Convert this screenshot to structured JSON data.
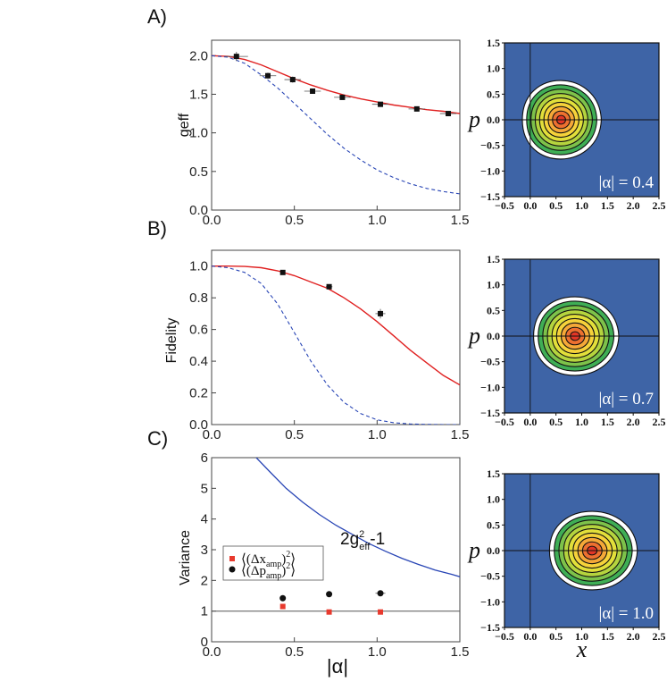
{
  "figure": {
    "panels": [
      "A)",
      "B)",
      "C)"
    ],
    "colors": {
      "theory_red": "#e02020",
      "classical_blue": "#2845b5",
      "wigner_bg": "#3e64a6",
      "marker": "#111111",
      "red_marker": "#e83a2e"
    }
  },
  "chart_data": [
    {
      "id": "A",
      "type": "scatter",
      "panel_label": "A)",
      "xlabel": "",
      "ylabel": "geff",
      "xlim": [
        0.0,
        1.5
      ],
      "ylim": [
        0.0,
        2.2
      ],
      "xticks": [
        "0.0",
        "0.5",
        "1.0",
        "1.5"
      ],
      "yticks": [
        "0.0",
        "0.5",
        "1.0",
        "1.5",
        "2.0"
      ],
      "points": {
        "x": [
          0.15,
          0.34,
          0.49,
          0.61,
          0.79,
          1.02,
          1.24,
          1.43
        ],
        "y": [
          1.99,
          1.74,
          1.69,
          1.54,
          1.46,
          1.37,
          1.31,
          1.25
        ],
        "xerr": [
          0.07,
          0.05,
          0.05,
          0.05,
          0.05,
          0.05,
          0.05,
          0.05
        ],
        "yerr": [
          0.06,
          0.04,
          0.04,
          0.03,
          0.03,
          0.03,
          0.03,
          0.03
        ]
      },
      "series": [
        {
          "name": "theory",
          "style": "solid-red",
          "x": [
            0.0,
            0.1,
            0.2,
            0.3,
            0.4,
            0.5,
            0.6,
            0.7,
            0.8,
            0.9,
            1.0,
            1.1,
            1.2,
            1.3,
            1.4,
            1.5
          ],
          "values": [
            2.0,
            1.99,
            1.95,
            1.88,
            1.79,
            1.7,
            1.62,
            1.55,
            1.49,
            1.44,
            1.4,
            1.36,
            1.33,
            1.3,
            1.28,
            1.25
          ]
        },
        {
          "name": "classical",
          "style": "dashed-blue",
          "x": [
            0.0,
            0.1,
            0.2,
            0.3,
            0.4,
            0.5,
            0.6,
            0.7,
            0.8,
            0.9,
            1.0,
            1.1,
            1.2,
            1.3,
            1.4,
            1.5
          ],
          "values": [
            2.0,
            1.98,
            1.9,
            1.75,
            1.58,
            1.38,
            1.18,
            0.98,
            0.8,
            0.65,
            0.52,
            0.42,
            0.34,
            0.28,
            0.24,
            0.21
          ]
        }
      ]
    },
    {
      "id": "B",
      "type": "scatter",
      "panel_label": "B)",
      "xlabel": "",
      "ylabel": "Fidelity",
      "xlim": [
        0.0,
        1.5
      ],
      "ylim": [
        0.0,
        1.1
      ],
      "xticks": [
        "0.0",
        "0.5",
        "1.0",
        "1.5"
      ],
      "yticks": [
        "0.0",
        "0.2",
        "0.4",
        "0.6",
        "0.8",
        "1.0"
      ],
      "points": {
        "x": [
          0.43,
          0.71,
          1.02
        ],
        "y": [
          0.96,
          0.87,
          0.7
        ],
        "xerr": [
          0.0,
          0.02,
          0.03
        ],
        "yerr": [
          0.01,
          0.01,
          0.03
        ]
      },
      "series": [
        {
          "name": "theory",
          "style": "solid-red",
          "x": [
            0.0,
            0.1,
            0.2,
            0.3,
            0.4,
            0.5,
            0.6,
            0.7,
            0.8,
            0.9,
            1.0,
            1.1,
            1.2,
            1.3,
            1.4,
            1.5
          ],
          "values": [
            1.0,
            1.0,
            0.998,
            0.99,
            0.97,
            0.94,
            0.9,
            0.86,
            0.8,
            0.73,
            0.65,
            0.56,
            0.47,
            0.39,
            0.31,
            0.25
          ]
        },
        {
          "name": "classical",
          "style": "dashed-blue",
          "x": [
            0.0,
            0.1,
            0.2,
            0.3,
            0.4,
            0.5,
            0.6,
            0.7,
            0.8,
            0.9,
            1.0,
            1.1,
            1.2,
            1.3,
            1.4,
            1.5
          ],
          "values": [
            1.0,
            0.99,
            0.96,
            0.89,
            0.76,
            0.58,
            0.4,
            0.25,
            0.14,
            0.07,
            0.03,
            0.012,
            0.004,
            0.001,
            0.0,
            0.0
          ]
        }
      ]
    },
    {
      "id": "C",
      "type": "scatter",
      "panel_label": "C)",
      "xlabel": "|α|",
      "ylabel": "Variance",
      "xlim": [
        0.0,
        1.5
      ],
      "ylim": [
        0,
        6
      ],
      "xticks": [
        "0.0",
        "0.5",
        "1.0",
        "1.5"
      ],
      "yticks": [
        "0",
        "1",
        "2",
        "3",
        "4",
        "5",
        "6"
      ],
      "annotation": {
        "base": "2g",
        "sup": "2",
        "sub": "eff",
        "tail": "-1"
      },
      "legend": [
        {
          "marker": "red-square",
          "label_base": "⟨(Δx",
          "label_sub": "amp",
          "label_sup": "2",
          "label_close": ")⟩"
        },
        {
          "marker": "black-circle",
          "label_base": "⟨(Δp",
          "label_sub": "amp",
          "label_sup": "2",
          "label_close": ")⟩"
        }
      ],
      "points_x": {
        "x": [
          0.43,
          0.71,
          1.02
        ],
        "y": [
          1.15,
          0.97,
          0.97
        ]
      },
      "points_p": {
        "x": [
          0.43,
          0.71,
          1.02
        ],
        "y": [
          1.42,
          1.55,
          1.58
        ],
        "xerr": [
          0.0,
          0.0,
          0.03
        ]
      },
      "series": [
        {
          "name": "2g_eff^2-1",
          "style": "solid-blue",
          "x": [
            0.27,
            0.35,
            0.45,
            0.55,
            0.65,
            0.75,
            0.85,
            0.95,
            1.05,
            1.15,
            1.25,
            1.35,
            1.45,
            1.5
          ],
          "values": [
            6.0,
            5.55,
            5.0,
            4.55,
            4.15,
            3.8,
            3.5,
            3.2,
            2.95,
            2.72,
            2.52,
            2.34,
            2.2,
            2.12
          ]
        },
        {
          "name": "unity",
          "style": "solid-gray",
          "x": [
            0.0,
            1.5
          ],
          "values": [
            1,
            1
          ]
        }
      ]
    }
  ],
  "wigner": {
    "x_label": "x",
    "p_label": "p",
    "x_ticks": [
      "−0.5",
      "0.0",
      "0.5",
      "1.0",
      "1.5",
      "2.0",
      "2.5"
    ],
    "p_ticks": [
      "1.5",
      "1.0",
      "0.5",
      "0.0",
      "−0.5",
      "−1.0",
      "−1.5"
    ],
    "xlim": [
      -0.5,
      2.5
    ],
    "plim": [
      -1.5,
      1.5
    ],
    "contour_colors": [
      "#ffffff",
      "#3fae55",
      "#7dc24a",
      "#b5d43e",
      "#e2df3a",
      "#f6d23a",
      "#f5a838",
      "#ee7030",
      "#e23626"
    ],
    "maps": [
      {
        "alpha_text": "|α| = 0.4",
        "center_x": 0.6,
        "spread_x": 0.78,
        "spread_p": 0.95,
        "skew": 0.06
      },
      {
        "alpha_text": "|α| = 0.7",
        "center_x": 0.87,
        "spread_x": 0.85,
        "spread_p": 0.95,
        "skew": 0.1
      },
      {
        "alpha_text": "|α| = 1.0",
        "center_x": 1.2,
        "spread_x": 0.88,
        "spread_p": 0.95,
        "skew": 0.12
      }
    ]
  }
}
